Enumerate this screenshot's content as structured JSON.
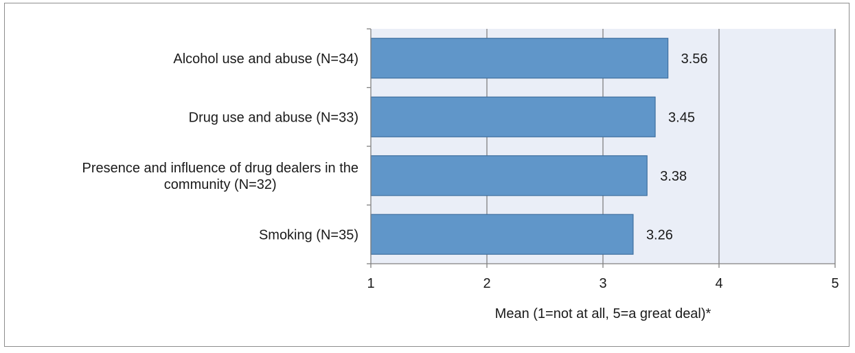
{
  "chart_data": {
    "type": "bar",
    "orientation": "horizontal",
    "categories": [
      "Alcohol use and abuse (N=34)",
      "Drug use and abuse (N=33)",
      "Presence and influence of drug dealers in the community (N=32)",
      "Smoking (N=35)"
    ],
    "category_lines": [
      [
        "Alcohol use and abuse (N=34)"
      ],
      [
        "Drug use and abuse (N=33)"
      ],
      [
        "Presence and influence of drug dealers in the",
        "community (N=32)"
      ],
      [
        "Smoking (N=35)"
      ]
    ],
    "values": [
      3.56,
      3.45,
      3.38,
      3.26
    ],
    "data_labels": [
      "3.56",
      "3.45",
      "3.38",
      "3.26"
    ],
    "xlim": [
      1,
      5
    ],
    "x_ticks": [
      1,
      2,
      3,
      4,
      5
    ],
    "xlabel": "Mean (1=not at all, 5=a great deal)*",
    "ylabel": "",
    "title": "",
    "grid": "vertical major gridlines",
    "legend": "none",
    "colors": {
      "bar_fill": "#6096c9",
      "bar_stroke": "#3f6f9f",
      "plot_background": "#eaeef7",
      "gridline": "#808080",
      "axis": "#808080",
      "frame_border": "#8c8c8c"
    }
  }
}
